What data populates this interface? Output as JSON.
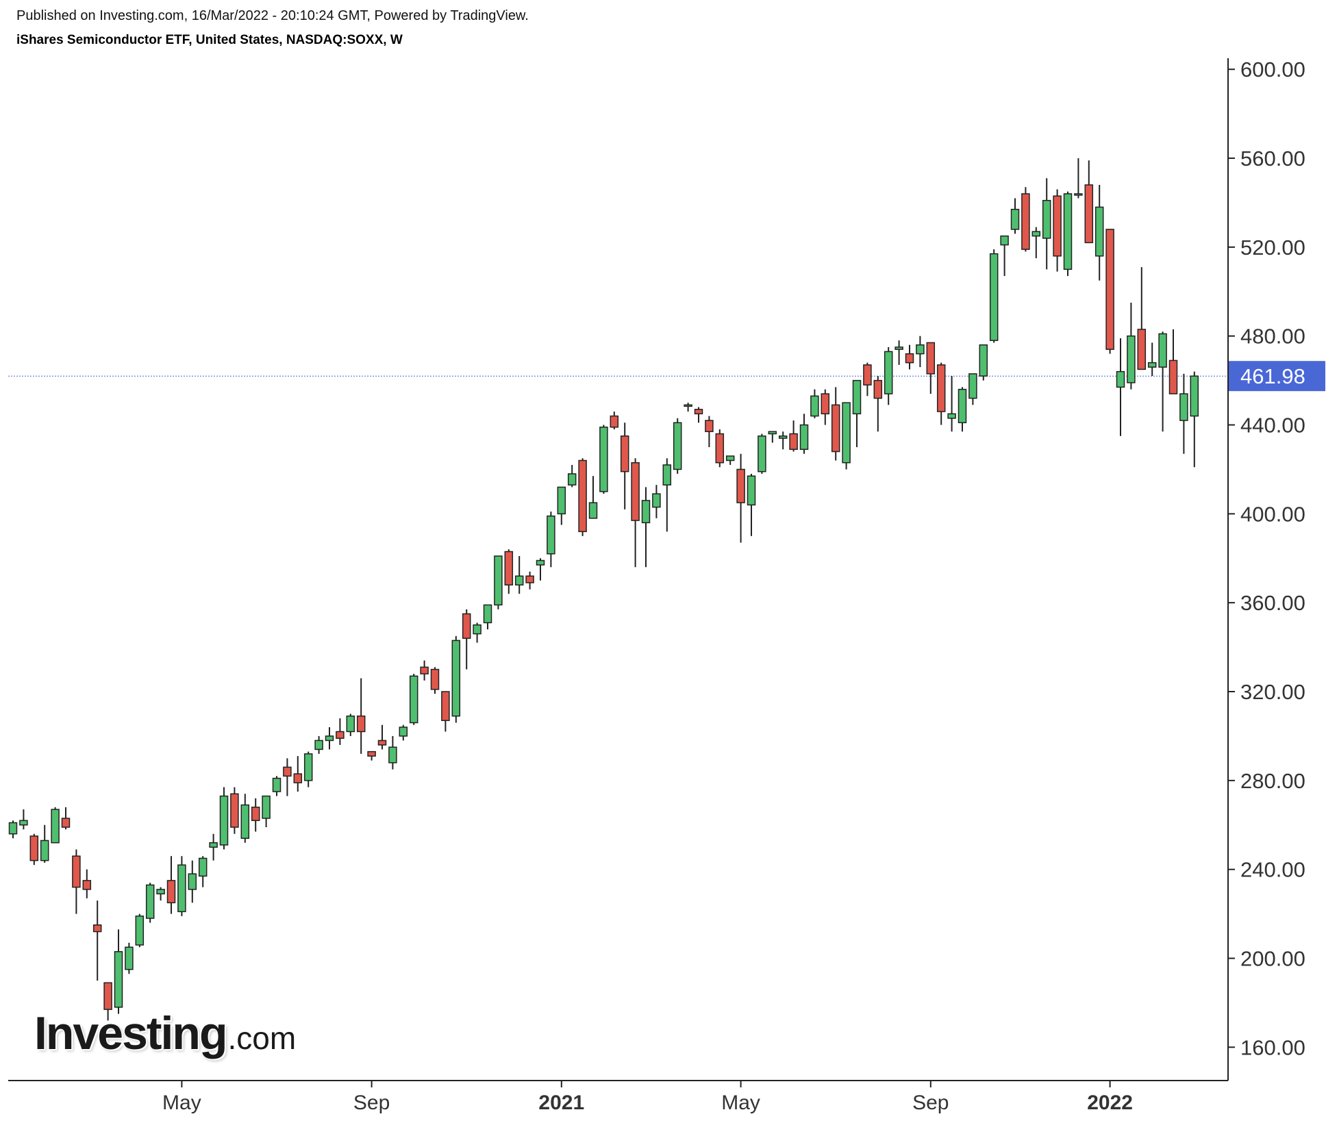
{
  "header": {
    "published": "Published on Investing.com, 16/Mar/2022 - 20:10:24 GMT, Powered by TradingView.",
    "instrument": "iShares Semiconductor ETF, United States, NASDAQ:SOXX, W"
  },
  "logo": {
    "main": "Investing",
    "sub": ".com"
  },
  "colors": {
    "up": "#4fbf6f",
    "down": "#e0584c",
    "outline": "#222222",
    "price_line": "#4a67d6",
    "axis": "#222222"
  },
  "chart_data": {
    "type": "candlestick",
    "interval": "W",
    "y_ticks": [
      "600.00",
      "560.00",
      "520.00",
      "480.00",
      "440.00",
      "400.00",
      "360.00",
      "320.00",
      "280.00",
      "240.00",
      "200.00",
      "160.00"
    ],
    "ylim": [
      145,
      605
    ],
    "x_ticks": [
      {
        "label": "May",
        "index": 16,
        "bold": false
      },
      {
        "label": "Sep",
        "index": 34,
        "bold": false
      },
      {
        "label": "2021",
        "index": 52,
        "bold": true
      },
      {
        "label": "May",
        "index": 69,
        "bold": false
      },
      {
        "label": "Sep",
        "index": 87,
        "bold": false
      },
      {
        "label": "2022",
        "index": 104,
        "bold": true
      }
    ],
    "last_price": 461.98,
    "last_price_label": "461.98",
    "candles": [
      [
        256,
        262,
        254,
        261
      ],
      [
        260,
        267,
        258,
        262
      ],
      [
        255,
        256,
        242,
        244
      ],
      [
        244,
        260,
        243,
        253
      ],
      [
        252,
        268,
        252,
        267
      ],
      [
        263,
        268,
        258,
        259
      ],
      [
        246,
        249,
        220,
        232
      ],
      [
        235,
        240,
        227,
        231
      ],
      [
        215,
        226,
        190,
        212
      ],
      [
        189,
        189,
        172,
        177
      ],
      [
        178,
        213,
        175,
        203
      ],
      [
        195,
        207,
        193,
        205
      ],
      [
        206,
        220,
        205,
        219
      ],
      [
        218,
        234,
        216,
        233
      ],
      [
        229,
        232,
        226,
        231
      ],
      [
        235,
        246,
        220,
        225
      ],
      [
        221,
        246,
        219,
        242
      ],
      [
        231,
        244,
        225,
        238
      ],
      [
        237,
        246,
        232,
        245
      ],
      [
        250,
        256,
        244,
        252
      ],
      [
        251,
        277,
        249,
        273
      ],
      [
        274,
        277,
        256,
        259
      ],
      [
        254,
        274,
        252,
        269
      ],
      [
        268,
        272,
        257,
        262
      ],
      [
        263,
        272,
        259,
        273
      ],
      [
        275,
        282,
        273,
        281
      ],
      [
        286,
        290,
        273,
        282
      ],
      [
        283,
        291,
        275,
        279
      ],
      [
        280,
        293,
        277,
        292
      ],
      [
        294,
        300,
        292,
        298
      ],
      [
        298,
        304,
        294,
        300
      ],
      [
        302,
        308,
        296,
        299
      ],
      [
        302,
        310,
        300,
        309
      ],
      [
        309,
        326,
        292,
        302
      ],
      [
        293,
        293,
        289,
        291
      ],
      [
        298,
        305,
        294,
        296
      ],
      [
        288,
        300,
        285,
        295
      ],
      [
        300,
        305,
        298,
        304
      ],
      [
        306,
        328,
        305,
        327
      ],
      [
        331,
        334,
        325,
        328
      ],
      [
        330,
        331,
        319,
        321
      ],
      [
        320,
        320,
        302,
        307
      ],
      [
        309,
        345,
        306,
        343
      ],
      [
        355,
        357,
        330,
        344
      ],
      [
        346,
        351,
        342,
        350
      ],
      [
        351,
        358,
        348,
        359
      ],
      [
        359,
        381,
        357,
        381
      ],
      [
        383,
        384,
        364,
        368
      ],
      [
        368,
        381,
        364,
        372
      ],
      [
        372,
        374,
        366,
        369
      ],
      [
        377,
        380,
        370,
        379
      ],
      [
        382,
        401,
        376,
        399
      ],
      [
        400,
        411,
        395,
        412
      ],
      [
        413,
        422,
        412,
        418
      ],
      [
        424,
        425,
        390,
        392
      ],
      [
        398,
        417,
        398,
        405
      ],
      [
        410,
        440,
        409,
        439
      ],
      [
        444,
        446,
        438,
        439
      ],
      [
        435,
        441,
        402,
        419
      ],
      [
        423,
        425,
        376,
        397
      ],
      [
        396,
        412,
        376,
        406
      ],
      [
        403,
        413,
        398,
        409
      ],
      [
        413,
        425,
        392,
        422
      ],
      [
        420,
        443,
        418,
        441
      ],
      [
        449,
        450,
        446,
        449
      ],
      [
        447,
        448,
        441,
        445
      ],
      [
        442,
        444,
        430,
        437
      ],
      [
        436,
        438,
        421,
        423
      ],
      [
        424,
        425,
        422,
        426
      ],
      [
        420,
        427,
        387,
        405
      ],
      [
        404,
        418,
        390,
        417
      ],
      [
        419,
        436,
        418,
        435
      ],
      [
        436,
        437,
        432,
        437
      ],
      [
        434,
        437,
        429,
        435
      ],
      [
        436,
        442,
        428,
        429
      ],
      [
        429,
        445,
        427,
        440
      ],
      [
        444,
        456,
        443,
        453
      ],
      [
        454,
        456,
        440,
        445
      ],
      [
        449,
        457,
        424,
        428
      ],
      [
        423,
        450,
        420,
        450
      ],
      [
        445,
        460,
        430,
        460
      ],
      [
        467,
        468,
        453,
        458
      ],
      [
        460,
        462,
        437,
        452
      ],
      [
        454,
        475,
        449,
        473
      ],
      [
        474,
        478,
        467,
        475
      ],
      [
        472,
        476,
        465,
        468
      ],
      [
        472,
        480,
        466,
        476
      ],
      [
        477,
        477,
        454,
        463
      ],
      [
        467,
        468,
        440,
        446
      ],
      [
        443,
        462,
        437,
        445
      ],
      [
        441,
        457,
        437,
        456
      ],
      [
        452,
        462,
        449,
        463
      ],
      [
        462,
        475,
        460,
        476
      ],
      [
        478,
        519,
        477,
        517
      ],
      [
        521,
        525,
        507,
        525
      ],
      [
        528,
        542,
        526,
        537
      ],
      [
        544,
        547,
        518,
        519
      ],
      [
        525,
        529,
        515,
        527
      ],
      [
        524,
        551,
        510,
        541
      ],
      [
        543,
        546,
        509,
        516
      ],
      [
        510,
        545,
        507,
        544
      ],
      [
        544,
        560,
        542,
        544
      ],
      [
        548,
        559,
        522,
        522
      ],
      [
        516,
        548,
        505,
        538
      ],
      [
        528,
        528,
        472,
        474
      ],
      [
        457,
        479,
        435,
        464
      ],
      [
        459,
        495,
        456,
        480
      ],
      [
        483,
        511,
        465,
        465
      ],
      [
        466,
        477,
        462,
        468
      ],
      [
        466,
        482,
        437,
        481
      ],
      [
        469,
        483,
        458,
        454
      ],
      [
        442,
        463,
        427,
        454
      ],
      [
        444,
        464,
        421,
        461.98
      ]
    ]
  }
}
